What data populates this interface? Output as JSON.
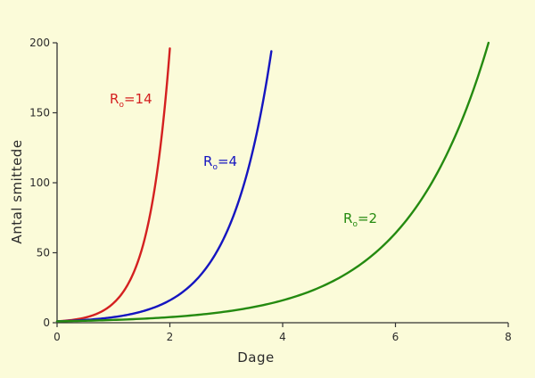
{
  "chart_data": {
    "type": "line",
    "title": "",
    "xlabel": "Dage",
    "ylabel": "Antal smittede",
    "xlim": [
      0,
      8
    ],
    "ylim": [
      0,
      200
    ],
    "xticks": [
      0,
      2,
      4,
      6,
      8
    ],
    "yticks": [
      0,
      50,
      100,
      150,
      200
    ],
    "grid": false,
    "legend": "none",
    "series": [
      {
        "name": "R₀=14",
        "label_main": "R",
        "label_sub": "o",
        "label_tail": "=14",
        "color": "#D42020",
        "x": [
          0,
          0.25,
          0.5,
          0.75,
          1.0,
          1.25,
          1.5,
          1.75,
          2.0
        ],
        "y": [
          1,
          1.9,
          3.7,
          7.2,
          14,
          27,
          52,
          101,
          196
        ]
      },
      {
        "name": "R₀=4",
        "label_main": "R",
        "label_sub": "o",
        "label_tail": "=4",
        "color": "#1515C0",
        "x": [
          0,
          0.5,
          1.0,
          1.5,
          2.0,
          2.5,
          3.0,
          3.5,
          3.8
        ],
        "y": [
          1,
          2,
          4,
          8,
          16,
          32,
          64,
          128,
          194
        ]
      },
      {
        "name": "R₀=2",
        "label_main": "R",
        "label_sub": "o",
        "label_tail": "=2",
        "color": "#248A10",
        "x": [
          0,
          1,
          2,
          3,
          4,
          5,
          6,
          7,
          7.65
        ],
        "y": [
          1,
          2,
          4,
          8,
          16,
          32,
          64,
          128,
          200
        ]
      }
    ]
  }
}
